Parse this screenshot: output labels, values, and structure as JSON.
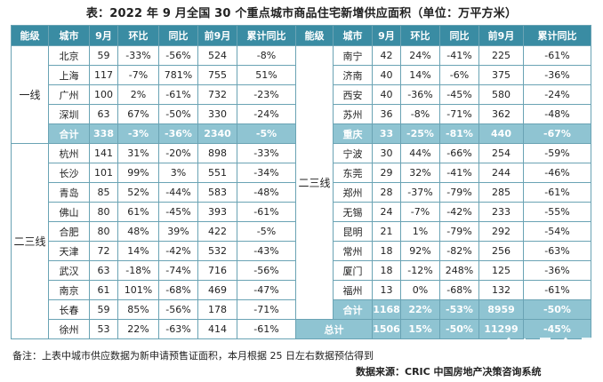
{
  "title": "表：2022 年 9 月全国 30 个重点城市商品住宅新增供应面积（单位：万平方米）",
  "headers": [
    "能级",
    "城市",
    "9月",
    "环比",
    "同比",
    "前9月",
    "累计同比"
  ],
  "left": {
    "tier1_label": "一线",
    "tier1_rows": [
      [
        "北京",
        "59",
        "-33%",
        "-56%",
        "524",
        "-8%"
      ],
      [
        "上海",
        "117",
        "-7%",
        "781%",
        "755",
        "51%"
      ],
      [
        "广州",
        "100",
        "2%",
        "-61%",
        "732",
        "-23%"
      ],
      [
        "深圳",
        "63",
        "67%",
        "-50%",
        "330",
        "-24%"
      ]
    ],
    "tier1_subtotal": [
      "合计",
      "338",
      "-3%",
      "-36%",
      "2340",
      "-5%"
    ],
    "tier23_label": "二三线",
    "tier23_rows": [
      [
        "杭州",
        "141",
        "31%",
        "-20%",
        "898",
        "-33%"
      ],
      [
        "长沙",
        "101",
        "99%",
        "3%",
        "551",
        "-34%"
      ],
      [
        "青岛",
        "85",
        "52%",
        "-44%",
        "583",
        "-48%"
      ],
      [
        "佛山",
        "80",
        "61%",
        "-45%",
        "393",
        "-61%"
      ],
      [
        "合肥",
        "80",
        "48%",
        "39%",
        "422",
        "-5%"
      ],
      [
        "天津",
        "72",
        "14%",
        "-42%",
        "532",
        "-43%"
      ],
      [
        "武汉",
        "63",
        "-18%",
        "-74%",
        "716",
        "-56%"
      ],
      [
        "南京",
        "61",
        "101%",
        "-68%",
        "469",
        "-47%"
      ],
      [
        "长春",
        "59",
        "85%",
        "-56%",
        "178",
        "-71%"
      ],
      [
        "徐州",
        "53",
        "22%",
        "-63%",
        "414",
        "-61%"
      ]
    ]
  },
  "right": {
    "group_label": "二三线",
    "rows": [
      [
        "南宁",
        "42",
        "24%",
        "-41%",
        "225",
        "-61%"
      ],
      [
        "济南",
        "40",
        "14%",
        "-6%",
        "375",
        "-36%"
      ],
      [
        "西安",
        "40",
        "-36%",
        "-45%",
        "580",
        "-24%"
      ],
      [
        "苏州",
        "36",
        "-8%",
        "-71%",
        "362",
        "-48%"
      ],
      [
        "重庆",
        "33",
        "-25%",
        "-81%",
        "440",
        "-67%"
      ],
      [
        "宁波",
        "30",
        "44%",
        "-66%",
        "254",
        "-59%"
      ],
      [
        "东莞",
        "29",
        "32%",
        "-41%",
        "244",
        "-46%"
      ],
      [
        "郑州",
        "28",
        "-37%",
        "-79%",
        "285",
        "-61%"
      ],
      [
        "无锡",
        "24",
        "-7%",
        "-42%",
        "233",
        "-55%"
      ],
      [
        "昆明",
        "21",
        "1%",
        "-79%",
        "292",
        "-54%"
      ],
      [
        "常州",
        "18",
        "92%",
        "-82%",
        "256",
        "-63%"
      ],
      [
        "厦门",
        "18",
        "-12%",
        "248%",
        "125",
        "-36%"
      ],
      [
        "福州",
        "13",
        "0%",
        "-68%",
        "132",
        "-61%"
      ]
    ],
    "subtotal": [
      "合计",
      "1168",
      "22%",
      "-53%",
      "8959",
      "-50%"
    ],
    "total": [
      "总计",
      "1506",
      "15%",
      "-50%",
      "11299",
      "-45%"
    ]
  },
  "note": "备注：上表中城市供应数据为新申请预售证面积，本月根据 25 日左右数据预估得到",
  "source": "数据来源：CRIC 中国房地产决策咨询系统",
  "colors": {
    "header": "#3a8ca3",
    "subtotal": "#8fc4d2",
    "border": "#6aa3b4"
  }
}
